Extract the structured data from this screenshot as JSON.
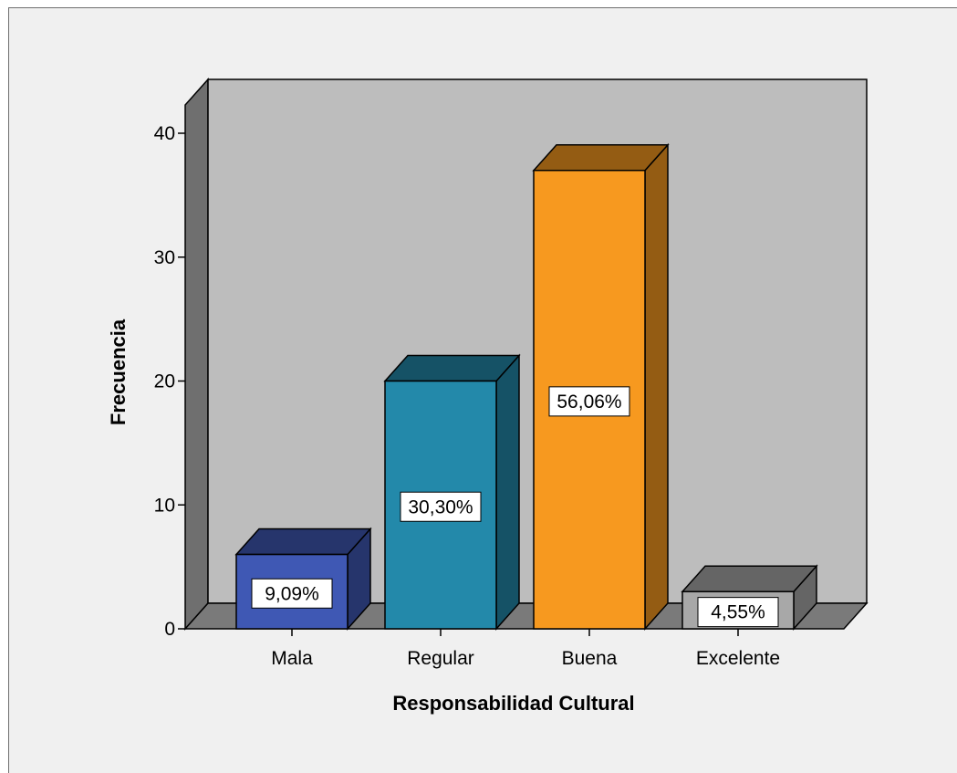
{
  "chart_data": {
    "type": "bar",
    "title": "",
    "xlabel": "Responsabilidad Cultural",
    "ylabel": "Frecuencia",
    "categories": [
      "Mala",
      "Regular",
      "Buena",
      "Excelente"
    ],
    "values": [
      6,
      20,
      37,
      3
    ],
    "value_labels": [
      "9,09%",
      "30,30%",
      "56,06%",
      "4,55%"
    ],
    "ylim": [
      0,
      40
    ],
    "yticks": [
      "0",
      "10",
      "20",
      "30",
      "40"
    ],
    "grid": false,
    "legend": "none",
    "bar_colors": [
      "#3f58b4",
      "#2389aa",
      "#f7991f",
      "#a8a8a8"
    ],
    "background_color": "#bdbdbd"
  }
}
